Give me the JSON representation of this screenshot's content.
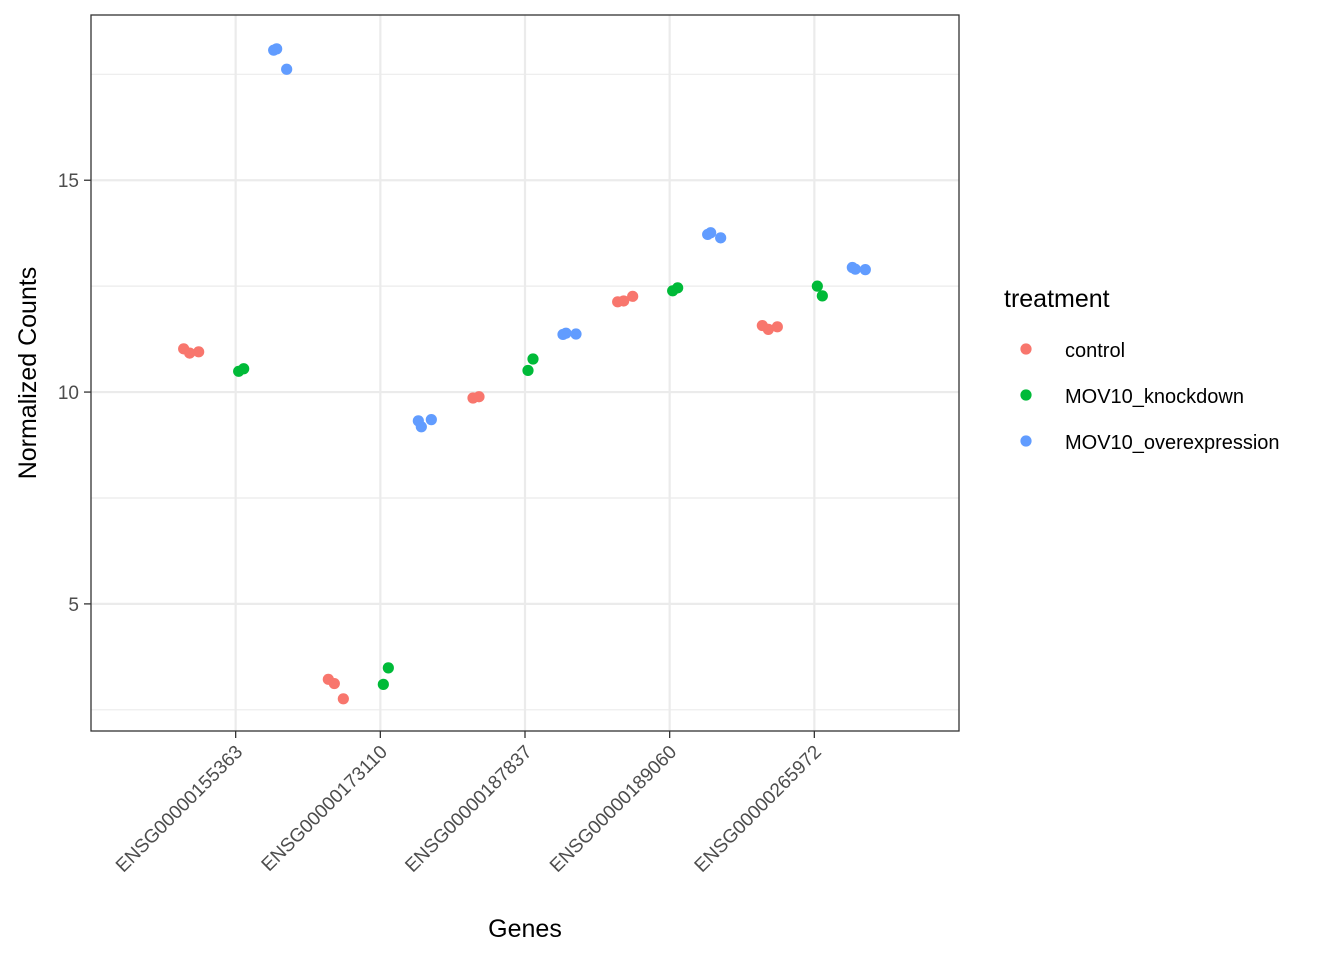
{
  "chart_data": {
    "type": "scatter",
    "xlabel": "Genes",
    "ylabel": "Normalized Counts",
    "categories": [
      "ENSG00000155363",
      "ENSG00000173110",
      "ENSG00000187837",
      "ENSG00000189060",
      "ENSG00000265972"
    ],
    "ylim": [
      2.0,
      18.9
    ],
    "yticks": [
      5,
      10,
      15
    ],
    "grid": true,
    "legend": {
      "title": "treatment",
      "placement": "right"
    },
    "series": [
      {
        "name": "control",
        "color": "#F8766D",
        "points": [
          {
            "gene": "ENSG00000155363",
            "y": 11.02
          },
          {
            "gene": "ENSG00000155363",
            "y": 10.92
          },
          {
            "gene": "ENSG00000155363",
            "y": 10.95
          },
          {
            "gene": "ENSG00000173110",
            "y": 3.22
          },
          {
            "gene": "ENSG00000173110",
            "y": 3.12
          },
          {
            "gene": "ENSG00000173110",
            "y": 2.76
          },
          {
            "gene": "ENSG00000187837",
            "y": 9.86
          },
          {
            "gene": "ENSG00000187837",
            "y": 9.89
          },
          {
            "gene": "ENSG00000189060",
            "y": 12.13
          },
          {
            "gene": "ENSG00000189060",
            "y": 12.15
          },
          {
            "gene": "ENSG00000189060",
            "y": 12.26
          },
          {
            "gene": "ENSG00000265972",
            "y": 11.57
          },
          {
            "gene": "ENSG00000265972",
            "y": 11.48
          },
          {
            "gene": "ENSG00000265972",
            "y": 11.54
          }
        ]
      },
      {
        "name": "MOV10_knockdown",
        "color": "#00BA38",
        "points": [
          {
            "gene": "ENSG00000155363",
            "y": 10.55
          },
          {
            "gene": "ENSG00000155363",
            "y": 10.49
          },
          {
            "gene": "ENSG00000173110",
            "y": 3.49
          },
          {
            "gene": "ENSG00000173110",
            "y": 3.1
          },
          {
            "gene": "ENSG00000187837",
            "y": 10.78
          },
          {
            "gene": "ENSG00000187837",
            "y": 10.51
          },
          {
            "gene": "ENSG00000189060",
            "y": 12.46
          },
          {
            "gene": "ENSG00000189060",
            "y": 12.39
          },
          {
            "gene": "ENSG00000265972",
            "y": 12.27
          },
          {
            "gene": "ENSG00000265972",
            "y": 12.5
          }
        ]
      },
      {
        "name": "MOV10_overexpression",
        "color": "#619CFF",
        "points": [
          {
            "gene": "ENSG00000155363",
            "y": 18.1
          },
          {
            "gene": "ENSG00000155363",
            "y": 17.62
          },
          {
            "gene": "ENSG00000155363",
            "y": 18.07
          },
          {
            "gene": "ENSG00000173110",
            "y": 9.18
          },
          {
            "gene": "ENSG00000173110",
            "y": 9.35
          },
          {
            "gene": "ENSG00000173110",
            "y": 9.32
          },
          {
            "gene": "ENSG00000187837",
            "y": 11.39
          },
          {
            "gene": "ENSG00000187837",
            "y": 11.37
          },
          {
            "gene": "ENSG00000187837",
            "y": 11.36
          },
          {
            "gene": "ENSG00000189060",
            "y": 13.76
          },
          {
            "gene": "ENSG00000189060",
            "y": 13.64
          },
          {
            "gene": "ENSG00000189060",
            "y": 13.72
          },
          {
            "gene": "ENSG00000265972",
            "y": 12.9
          },
          {
            "gene": "ENSG00000265972",
            "y": 12.89
          },
          {
            "gene": "ENSG00000265972",
            "y": 12.94
          }
        ]
      }
    ]
  }
}
